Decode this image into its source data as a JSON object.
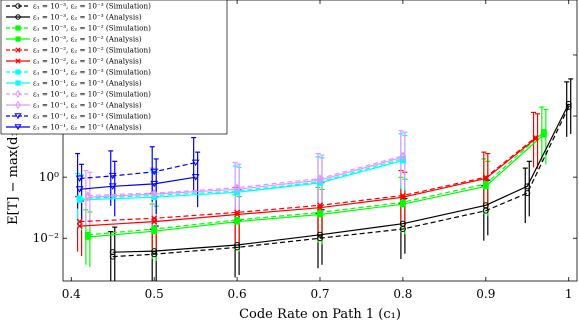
{
  "chart_data": {
    "type": "line",
    "xlabel": "Code Rate on Path 1 (c₁)",
    "ylabel": "E[T] − max(d₁, d₂) (ms)",
    "x_ticks": [
      "0.4",
      "0.5",
      "0.6",
      "0.7",
      "0.8",
      "0.9",
      "1"
    ],
    "y_ticks": [
      "10⁻²",
      "10⁰",
      "10²",
      "10⁴"
    ],
    "xlim": [
      0.39,
      1.01
    ],
    "ylim_log10": [
      -3.4,
      5.8
    ],
    "y_scale": "log",
    "grid": false,
    "legend_position": "top-left",
    "series": [
      {
        "name": "ε₁ = 10⁻³, ε₂ = 10⁻³ (Simulation)",
        "color": "#000000",
        "dashed": true,
        "marker": "circle",
        "x": [
          0.45,
          0.5,
          0.6,
          0.7,
          0.8,
          0.9,
          0.95,
          1.0
        ],
        "y": [
          0.0025,
          0.003,
          0.005,
          0.01,
          0.02,
          0.08,
          0.3,
          200
        ]
      },
      {
        "name": "ε₁ = 10⁻³, ε₂ = 10⁻³ (Analysis)",
        "color": "#000000",
        "dashed": false,
        "marker": "circle",
        "x": [
          0.45,
          0.5,
          0.6,
          0.7,
          0.8,
          0.9,
          0.95,
          1.0
        ],
        "y": [
          0.0035,
          0.0038,
          0.006,
          0.013,
          0.03,
          0.12,
          0.5,
          250
        ]
      },
      {
        "name": "ε₁ = 10⁻³, ε₂ = 10⁻² (Simulation)",
        "color": "#00ff00",
        "dashed": true,
        "marker": "square",
        "x": [
          0.42,
          0.5,
          0.6,
          0.7,
          0.8,
          0.9,
          0.97
        ],
        "y": [
          0.013,
          0.02,
          0.04,
          0.07,
          0.15,
          0.6,
          30
        ]
      },
      {
        "name": "ε₁ = 10⁻³, ε₂ = 10⁻² (Analysis)",
        "color": "#00ff00",
        "dashed": false,
        "marker": "square",
        "x": [
          0.42,
          0.5,
          0.6,
          0.7,
          0.8,
          0.9,
          0.97
        ],
        "y": [
          0.011,
          0.017,
          0.035,
          0.06,
          0.13,
          0.5,
          25
        ]
      },
      {
        "name": "ε₁ = 10⁻², ε₂ = 10⁻² (Simulation)",
        "color": "#ff0000",
        "dashed": true,
        "marker": "x",
        "x": [
          0.41,
          0.5,
          0.6,
          0.7,
          0.8,
          0.9,
          0.96
        ],
        "y": [
          0.035,
          0.045,
          0.07,
          0.12,
          0.25,
          1.0,
          20
        ]
      },
      {
        "name": "ε₁ = 10⁻², ε₂ = 10⁻² (Analysis)",
        "color": "#ff0000",
        "dashed": false,
        "marker": "x",
        "x": [
          0.41,
          0.5,
          0.6,
          0.7,
          0.8,
          0.9,
          0.96
        ],
        "y": [
          0.025,
          0.035,
          0.06,
          0.1,
          0.22,
          0.9,
          18
        ]
      },
      {
        "name": "ε₁ = 10⁻¹, ε₂ = 10⁻³ (Simulation)",
        "color": "#00ffff",
        "dashed": true,
        "marker": "square",
        "x": [
          0.41,
          0.5,
          0.6,
          0.7,
          0.8
        ],
        "y": [
          0.2,
          0.25,
          0.35,
          0.7,
          4
        ]
      },
      {
        "name": "ε₁ = 10⁻¹, ε₂ = 10⁻³ (Analysis)",
        "color": "#00ffff",
        "dashed": false,
        "marker": "square",
        "x": [
          0.41,
          0.5,
          0.6,
          0.7,
          0.8
        ],
        "y": [
          0.18,
          0.22,
          0.32,
          0.65,
          3.5
        ]
      },
      {
        "name": "ε₁ = 10⁻¹, ε₂ = 10⁻² (Simulation)",
        "color": "#dd99ff",
        "dashed": true,
        "marker": "diamond",
        "x": [
          0.42,
          0.5,
          0.6,
          0.7,
          0.8
        ],
        "y": [
          0.25,
          0.3,
          0.45,
          0.9,
          5
        ]
      },
      {
        "name": "ε₁ = 10⁻¹, ε₂ = 10⁻² (Analysis)",
        "color": "#dd99ff",
        "dashed": false,
        "marker": "diamond",
        "x": [
          0.42,
          0.5,
          0.6,
          0.7,
          0.8
        ],
        "y": [
          0.22,
          0.28,
          0.4,
          0.8,
          4.5
        ]
      },
      {
        "name": "ε₁ = 10⁻¹, ε₂ = 10⁻¹ (Simulation)",
        "color": "#0000ff",
        "dashed": true,
        "marker": "triangle-down",
        "x": [
          0.41,
          0.45,
          0.5,
          0.55
        ],
        "y": [
          0.9,
          1.1,
          1.5,
          3
        ]
      },
      {
        "name": "ε₁ = 10⁻¹, ε₂ = 10⁻¹ (Analysis)",
        "color": "#0000ff",
        "dashed": false,
        "marker": "triangle-down",
        "x": [
          0.41,
          0.45,
          0.5,
          0.55
        ],
        "y": [
          0.4,
          0.5,
          0.6,
          1.0
        ]
      }
    ]
  }
}
